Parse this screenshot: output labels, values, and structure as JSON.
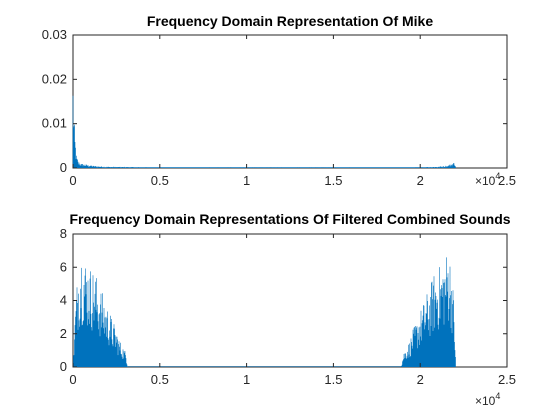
{
  "chart_data": [
    {
      "type": "line",
      "title": "Frequency Domain Representation Of Mike",
      "xlabel": "",
      "ylabel": "",
      "xlim": [
        0,
        25000
      ],
      "ylim": [
        0,
        0.03
      ],
      "x_ticks": [
        0,
        5000,
        10000,
        15000,
        20000,
        25000
      ],
      "x_tick_labels": [
        "0",
        "0.5",
        "1",
        "1.5",
        "2",
        "2.5"
      ],
      "x_exponent_label": "×10",
      "x_exponent_power": "4",
      "y_ticks": [
        0,
        0.01,
        0.02,
        0.03
      ],
      "y_tick_labels": [
        "0",
        "0.01",
        "0.02",
        "0.03"
      ],
      "grid": false,
      "color": "#0072BD",
      "series": [
        {
          "envelope": [
            [
              0,
              0.021
            ],
            [
              60,
              0.012
            ],
            [
              120,
              0.007
            ],
            [
              200,
              0.003
            ],
            [
              300,
              0.0015
            ],
            [
              500,
              0.001
            ],
            [
              800,
              0.0008
            ],
            [
              1200,
              0.0005
            ],
            [
              2000,
              0.0003
            ],
            [
              4000,
              0.0002
            ],
            [
              8000,
              0.0001
            ],
            [
              12000,
              0.0001
            ],
            [
              16000,
              0.0001
            ],
            [
              20000,
              0.0002
            ],
            [
              21000,
              0.0003
            ],
            [
              21600,
              0.0006
            ],
            [
              22000,
              0.0014
            ],
            [
              22050,
              0.0002
            ]
          ]
        }
      ]
    },
    {
      "type": "line",
      "title": "Frequency Domain Representations Of Filtered Combined Sounds",
      "xlabel": "",
      "ylabel": "",
      "xlim": [
        0,
        25000
      ],
      "ylim": [
        0,
        8
      ],
      "x_ticks": [
        0,
        5000,
        10000,
        15000,
        20000,
        25000
      ],
      "x_tick_labels": [
        "0",
        "0.5",
        "1",
        "1.5",
        "2",
        "2.5"
      ],
      "x_exponent_label": "×10",
      "x_exponent_power": "4",
      "y_ticks": [
        0,
        2,
        4,
        6,
        8
      ],
      "y_tick_labels": [
        "0",
        "2",
        "4",
        "6",
        "8"
      ],
      "grid": false,
      "color": "#0072BD",
      "series": [
        {
          "envelope": [
            [
              0,
              0.0
            ],
            [
              150,
              4.0
            ],
            [
              300,
              6.2
            ],
            [
              450,
              7.3
            ],
            [
              550,
              7.1
            ],
            [
              700,
              6.6
            ],
            [
              900,
              6.2
            ],
            [
              1100,
              6.0
            ],
            [
              1300,
              5.7
            ],
            [
              1500,
              5.0
            ],
            [
              1700,
              4.5
            ],
            [
              1900,
              3.9
            ],
            [
              2100,
              3.4
            ],
            [
              2300,
              2.8
            ],
            [
              2500,
              2.3
            ],
            [
              2700,
              1.6
            ],
            [
              2900,
              1.2
            ],
            [
              3050,
              0.9
            ],
            [
              3150,
              0.0
            ],
            [
              18900,
              0.0
            ],
            [
              19050,
              0.9
            ],
            [
              19200,
              1.2
            ],
            [
              19400,
              1.6
            ],
            [
              19600,
              2.3
            ],
            [
              19800,
              2.8
            ],
            [
              20000,
              3.4
            ],
            [
              20200,
              3.9
            ],
            [
              20400,
              4.5
            ],
            [
              20600,
              5.0
            ],
            [
              20800,
              5.7
            ],
            [
              21000,
              6.0
            ],
            [
              21200,
              6.2
            ],
            [
              21400,
              6.6
            ],
            [
              21550,
              7.1
            ],
            [
              21650,
              7.3
            ],
            [
              21800,
              6.2
            ],
            [
              21950,
              4.0
            ],
            [
              22050,
              0.0
            ]
          ]
        }
      ]
    }
  ]
}
